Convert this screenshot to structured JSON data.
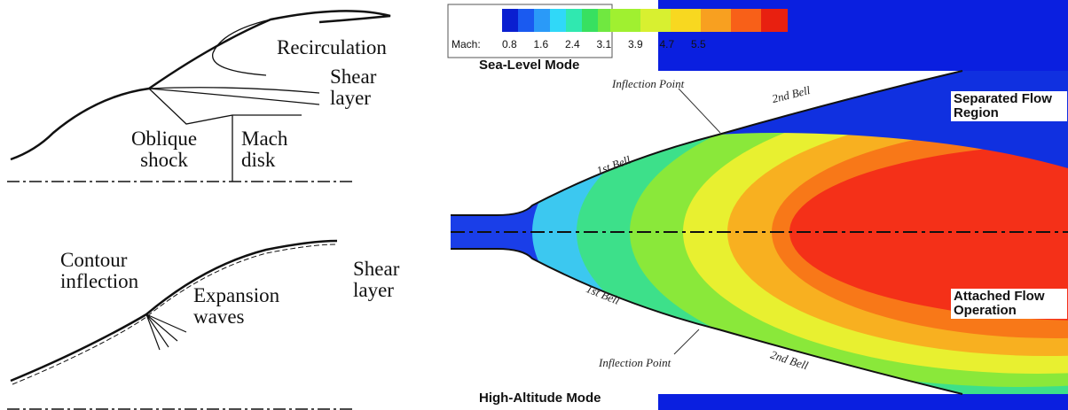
{
  "sketch_top": {
    "labels": [
      "Recirculation",
      "Shear layer",
      "Oblique shock",
      "Mach disk"
    ]
  },
  "sketch_bottom": {
    "labels": [
      "Contour inflection",
      "Expansion waves",
      "Shear layer"
    ]
  },
  "colorbar": {
    "title": "Mach:",
    "ticks": [
      "0.8",
      "1.6",
      "2.4",
      "3.1",
      "3.9",
      "4.7",
      "5.5"
    ]
  },
  "contour": {
    "labels": [
      "Sea-Level Mode",
      "Inflection Point",
      "2nd Bell",
      "Separated Flow Region",
      "1st Bell",
      "1st Bell",
      "Attached Flow Operation",
      "Inflection Point",
      "2nd Bell",
      "High-Altitude Mode"
    ]
  }
}
